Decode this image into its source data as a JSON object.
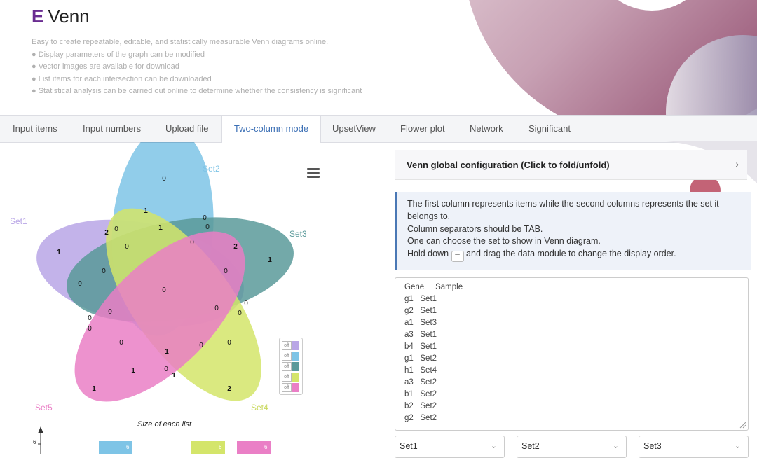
{
  "header": {
    "logo_mark": "E",
    "title": "Venn",
    "description": "Easy to create repeatable, editable, and statistically measurable Venn diagrams online.",
    "features": [
      "Display parameters of the graph can be modified",
      "Vector images are available for download",
      "List items for each intersection can be downloaded",
      "Statistical analysis can be carried out online to determine whether the consistency is significant"
    ]
  },
  "tabs": [
    "Input items",
    "Input numbers",
    "Upload file",
    "Two-column mode",
    "UpsetView",
    "Flower plot",
    "Network",
    "Significant"
  ],
  "active_tab": "Two-column mode",
  "venn": {
    "sets": [
      {
        "name": "Set1",
        "color": "#b9a6e6"
      },
      {
        "name": "Set2",
        "color": "#7ec4e6"
      },
      {
        "name": "Set3",
        "color": "#5b9a9a"
      },
      {
        "name": "Set4",
        "color": "#d4e56a"
      },
      {
        "name": "Set5",
        "color": "#ea7fc6"
      }
    ],
    "toggle_label": "off",
    "size_title": "Size of each list",
    "size_axis_max": "6",
    "size_values": [
      "6",
      "6",
      "6"
    ]
  },
  "config": {
    "title": "Venn global configuration (Click to fold/unfold)"
  },
  "info": {
    "line1": "The first column represents items while the second columns represents the set it",
    "line2": "belongs to.",
    "line3": "Column separators should be TAB.",
    "line4": "One can choose the set to show in Venn diagram.",
    "line5_pre": "Hold down",
    "line5_post": "and drag the data module to change the display order."
  },
  "textarea_lines": [
    "Gene     Sample",
    "g1   Set1",
    "g2   Set1",
    "a1   Set3",
    "a3   Set1",
    "b4   Set1",
    "g1   Set2",
    "h1   Set4",
    "a3   Set2",
    "b1   Set2",
    "b2   Set2",
    "g2   Set2"
  ],
  "selects": [
    "Set1",
    "Set2",
    "Set3"
  ]
}
